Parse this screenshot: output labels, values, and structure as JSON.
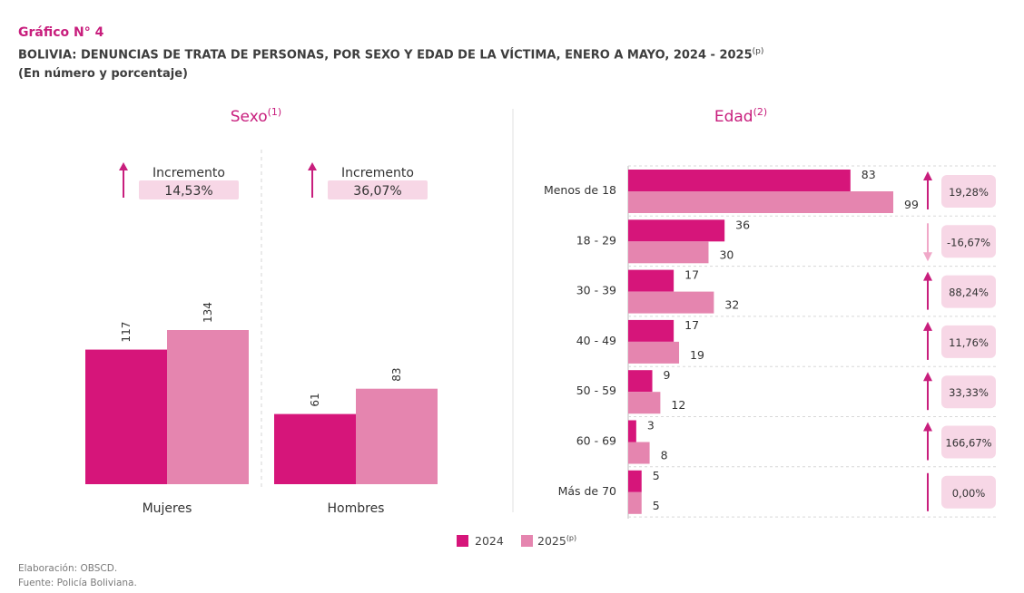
{
  "header": {
    "figure_label": "Gráfico N° 4",
    "title": "BOLIVIA: DENUNCIAS DE TRATA DE PERSONAS, POR SEXO Y EDAD DE LA VÍCTIMA, ENERO A MAYO, 2024 - 2025",
    "title_note": "(p)",
    "units": "(En número y porcentaje)"
  },
  "colors": {
    "y2024": "#d6157a",
    "y2025": "#e585af",
    "accent": "#c81e7d",
    "badge": "#f7d7e6",
    "arrow_down": "#f0a8c8"
  },
  "chart_data": [
    {
      "type": "bar",
      "title": "Sexo",
      "title_note": "(1)",
      "categories": [
        "Mujeres",
        "Hombres"
      ],
      "series": [
        {
          "name": "2024",
          "values": [
            117,
            61
          ]
        },
        {
          "name": "2025",
          "values": [
            134,
            83
          ]
        }
      ],
      "ylim": [
        0,
        260
      ],
      "increments": [
        {
          "label": "Incremento",
          "value": "14,53%",
          "direction": "up"
        },
        {
          "label": "Incremento",
          "value": "36,07%",
          "direction": "up"
        }
      ]
    },
    {
      "type": "bar",
      "orientation": "horizontal",
      "title": "Edad",
      "title_note": "(2)",
      "categories": [
        "Menos de 18",
        "18 - 29",
        "30 - 39",
        "40 - 49",
        "50 - 59",
        "60 - 69",
        "Más de 70"
      ],
      "series": [
        {
          "name": "2024",
          "values": [
            83,
            36,
            17,
            17,
            9,
            3,
            5
          ]
        },
        {
          "name": "2025",
          "values": [
            99,
            30,
            32,
            19,
            12,
            8,
            5
          ]
        }
      ],
      "xlim": [
        0,
        100
      ],
      "changes": [
        {
          "value": "19,28%",
          "direction": "up"
        },
        {
          "value": "-16,67%",
          "direction": "down"
        },
        {
          "value": "88,24%",
          "direction": "up"
        },
        {
          "value": "11,76%",
          "direction": "up"
        },
        {
          "value": "33,33%",
          "direction": "up"
        },
        {
          "value": "166,67%",
          "direction": "up"
        },
        {
          "value": "0,00%",
          "direction": "flat"
        }
      ]
    }
  ],
  "legend": {
    "items": [
      {
        "label": "2024"
      },
      {
        "label": "2025",
        "note": "(p)"
      }
    ]
  },
  "footer": {
    "elaboracion": "Elaboración: OBSCD.",
    "fuente": "Fuente: Policía Boliviana."
  }
}
